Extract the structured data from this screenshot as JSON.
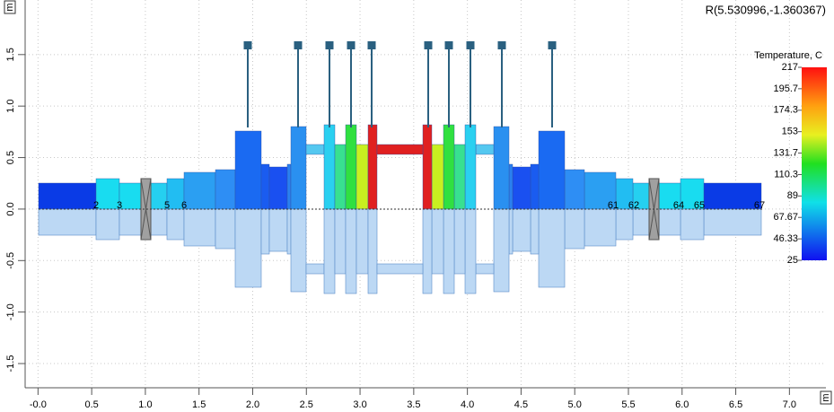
{
  "header": {
    "cursor": "R(5.530996,-1.360367)"
  },
  "axes": {
    "x_unit": "m",
    "y_unit": "m",
    "xlim": [
      -0.12,
      7.34
    ],
    "ylim": [
      -1.735,
      2.03
    ],
    "xticks": [
      {
        "value": 0,
        "label": "-0.0"
      },
      {
        "value": 0.5,
        "label": "0.5"
      },
      {
        "value": 1,
        "label": "1.0"
      },
      {
        "value": 1.5,
        "label": "1.5"
      },
      {
        "value": 2,
        "label": "2.0"
      },
      {
        "value": 2.5,
        "label": "2.5"
      },
      {
        "value": 3,
        "label": "3.0"
      },
      {
        "value": 3.5,
        "label": "3.5"
      },
      {
        "value": 4,
        "label": "4.0"
      },
      {
        "value": 4.5,
        "label": "4.5"
      },
      {
        "value": 5,
        "label": "5.0"
      },
      {
        "value": 5.5,
        "label": "5.5"
      },
      {
        "value": 6,
        "label": "6.0"
      },
      {
        "value": 6.5,
        "label": "6.5"
      },
      {
        "value": 7,
        "label": "7.0"
      }
    ],
    "yticks": [
      {
        "value": -1.5,
        "label": "-1.5"
      },
      {
        "value": -1,
        "label": "-1.0"
      },
      {
        "value": -0.5,
        "label": "-0.5"
      },
      {
        "value": 0,
        "label": "0.0"
      },
      {
        "value": 0.5,
        "label": "0.5"
      },
      {
        "value": 1,
        "label": "1.0"
      },
      {
        "value": 1.5,
        "label": "1.5"
      }
    ]
  },
  "colorbar": {
    "title": "Temperature, C",
    "lim": [
      25,
      217
    ],
    "ticks": [
      217,
      195.7,
      174.3,
      153,
      131.7,
      110.3,
      89,
      67.67,
      46.33,
      25
    ]
  },
  "node_labels": [
    "2",
    "3",
    "5",
    "6",
    "61",
    "62",
    "64",
    "65",
    "67"
  ]
}
